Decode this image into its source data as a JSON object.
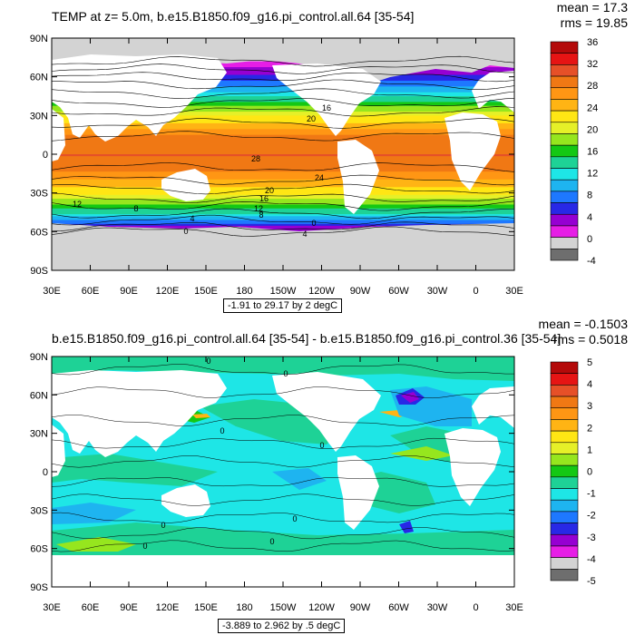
{
  "panels": [
    {
      "title": "TEMP at z=   5.0m, b.e15.B1850.f09_g16.pi_control.all.64 [35-54]",
      "stats": [
        "mean = 17.3",
        "rms = 19.85"
      ],
      "range_label": "-1.91 to 29.17 by 2 degC",
      "lat_ticks": [
        "90N",
        "60N",
        "30N",
        "0",
        "30S",
        "60S",
        "90S"
      ],
      "lon_ticks": [
        "30E",
        "60E",
        "90E",
        "120E",
        "150E",
        "180",
        "150W",
        "120W",
        "90W",
        "60W",
        "30W",
        "0",
        "30E"
      ],
      "colorbar_ticks": [
        "36",
        "32",
        "28",
        "24",
        "20",
        "16",
        "12",
        "8",
        "4",
        "0",
        "-4"
      ],
      "colors": [
        "#6e6e6e",
        "#d3d3d3",
        "#e61ee6",
        "#9600d2",
        "#2828e6",
        "#1e78ff",
        "#1eb4f0",
        "#1ee6e6",
        "#1ed296",
        "#14c814",
        "#96e61e",
        "#e6f028",
        "#ffe614",
        "#ffb414",
        "#ff9614",
        "#f07814",
        "#e65028",
        "#e61414",
        "#b40a0a"
      ],
      "contour_labels": [
        "16",
        "20",
        "28",
        "24",
        "20",
        "16",
        "12",
        "8",
        "4",
        "0",
        "0",
        "4",
        "12",
        "8"
      ]
    },
    {
      "title": "b.e15.B1850.f09_g16.pi_control.all.64 [35-54] - b.e15.B1850.f09_g16.pi_control.36 [35-54]",
      "stats": [
        "mean = -0.1503",
        "rms = 0.5018"
      ],
      "range_label": "-3.889 to 2.962 by .5 degC",
      "lat_ticks": [
        "90N",
        "60N",
        "30N",
        "0",
        "30S",
        "60S",
        "90S"
      ],
      "lon_ticks": [
        "30E",
        "60E",
        "90E",
        "120E",
        "150E",
        "180",
        "150W",
        "120W",
        "90W",
        "60W",
        "30W",
        "0",
        "30E"
      ],
      "colorbar_ticks": [
        "5",
        "4",
        "3",
        "2",
        "1",
        "0",
        "-1",
        "-2",
        "-3",
        "-4",
        "-5"
      ],
      "colors": [
        "#6e6e6e",
        "#d3d3d3",
        "#e61ee6",
        "#9600d2",
        "#2828e6",
        "#1e78ff",
        "#1eb4f0",
        "#1ee6e6",
        "#1ed296",
        "#14c814",
        "#96e61e",
        "#e6f028",
        "#ffe614",
        "#ffb414",
        "#ff9614",
        "#f07814",
        "#e65028",
        "#e61414",
        "#b40a0a"
      ],
      "contour_labels": [
        "0",
        "0",
        "0",
        "0",
        "0",
        "0",
        "0",
        "0"
      ]
    }
  ],
  "chart_data": [
    {
      "type": "heatmap",
      "title": "TEMP at z=   5.0m, b.e15.B1850.f09_g16.pi_control.all.64 [35-54]",
      "variable": "TEMP",
      "units": "degC",
      "x_range_deg": [
        30,
        390
      ],
      "y_range_deg": [
        -90,
        90
      ],
      "contour_interval": 2,
      "min": -1.91,
      "max": 29.17,
      "mean": 17.3,
      "rms": 19.85,
      "colorbar_levels": [
        -4,
        -2,
        0,
        2,
        4,
        6,
        8,
        10,
        12,
        14,
        16,
        18,
        20,
        22,
        24,
        26,
        28,
        30,
        32,
        34,
        36
      ],
      "zonal_profile_degC": {
        "lat": [
          75,
          60,
          45,
          30,
          15,
          0,
          -15,
          -30,
          -45,
          -55,
          -65
        ],
        "value": [
          -1.0,
          5.0,
          12.0,
          20.0,
          26.5,
          28.0,
          25.5,
          20.0,
          12.0,
          4.0,
          -1.0
        ]
      }
    },
    {
      "type": "heatmap",
      "title": "b.e15.B1850.f09_g16.pi_control.all.64 [35-54] - b.e15.B1850.f09_g16.pi_control.36 [35-54]",
      "units": "degC",
      "x_range_deg": [
        30,
        390
      ],
      "y_range_deg": [
        -90,
        90
      ],
      "contour_interval": 0.5,
      "min": -3.889,
      "max": 2.962,
      "mean": -0.1503,
      "rms": 0.5018,
      "colorbar_levels": [
        -5,
        -4.5,
        -4,
        -3.5,
        -3,
        -2.5,
        -2,
        -1.5,
        -1,
        -0.5,
        0,
        0.5,
        1,
        1.5,
        2,
        2.5,
        3,
        3.5,
        4,
        4.5,
        5
      ]
    }
  ]
}
